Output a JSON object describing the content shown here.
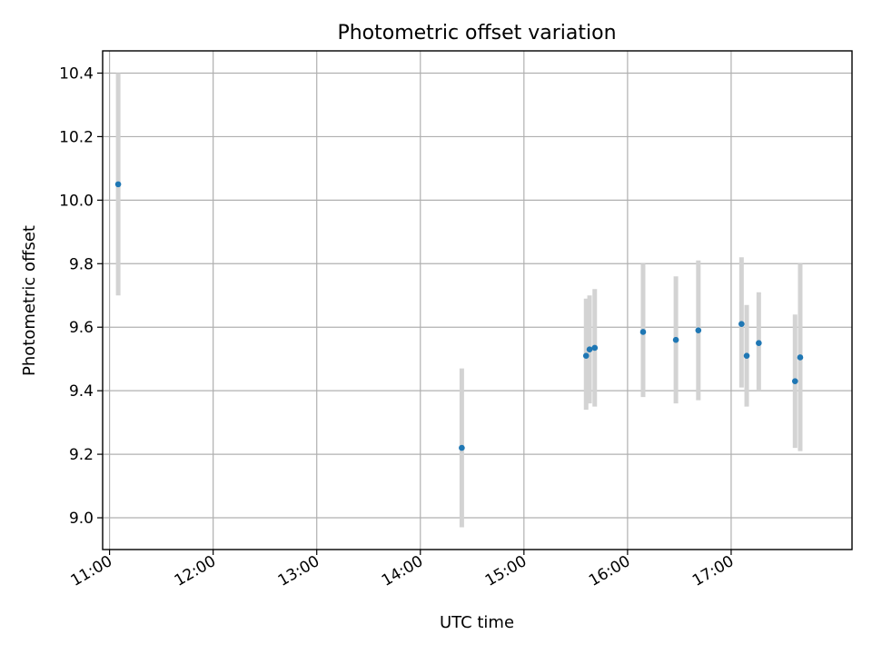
{
  "chart_data": {
    "type": "scatter",
    "title": "Photometric offset variation",
    "xlabel": "UTC time",
    "ylabel": "Photometric offset",
    "x_ticks": [
      "11:00",
      "12:00",
      "13:00",
      "14:00",
      "15:00",
      "16:00",
      "17:00"
    ],
    "y_ticks": [
      "9.0",
      "9.2",
      "9.4",
      "9.6",
      "9.8",
      "10.0",
      "10.2",
      "10.4"
    ],
    "xlim": [
      "10:56",
      "18:10"
    ],
    "ylim": [
      8.9,
      10.47
    ],
    "grid": true,
    "marker_color": "#1f77b4",
    "errorbar_color": "#d3d3d3",
    "points": [
      {
        "x": "11:05",
        "y": 10.05,
        "ylo": 9.7,
        "yhi": 10.4
      },
      {
        "x": "14:24",
        "y": 9.22,
        "ylo": 8.97,
        "yhi": 9.47
      },
      {
        "x": "15:36",
        "y": 9.51,
        "ylo": 9.34,
        "yhi": 9.69
      },
      {
        "x": "15:38",
        "y": 9.53,
        "ylo": 9.36,
        "yhi": 9.7
      },
      {
        "x": "15:41",
        "y": 9.535,
        "ylo": 9.35,
        "yhi": 9.72
      },
      {
        "x": "16:09",
        "y": 9.585,
        "ylo": 9.38,
        "yhi": 9.8
      },
      {
        "x": "16:28",
        "y": 9.56,
        "ylo": 9.36,
        "yhi": 9.76
      },
      {
        "x": "16:41",
        "y": 9.59,
        "ylo": 9.37,
        "yhi": 9.81
      },
      {
        "x": "17:06",
        "y": 9.61,
        "ylo": 9.41,
        "yhi": 9.82
      },
      {
        "x": "17:09",
        "y": 9.51,
        "ylo": 9.35,
        "yhi": 9.67
      },
      {
        "x": "17:16",
        "y": 9.55,
        "ylo": 9.4,
        "yhi": 9.71
      },
      {
        "x": "17:37",
        "y": 9.43,
        "ylo": 9.22,
        "yhi": 9.64
      },
      {
        "x": "17:40",
        "y": 9.505,
        "ylo": 9.21,
        "yhi": 9.8
      }
    ]
  }
}
